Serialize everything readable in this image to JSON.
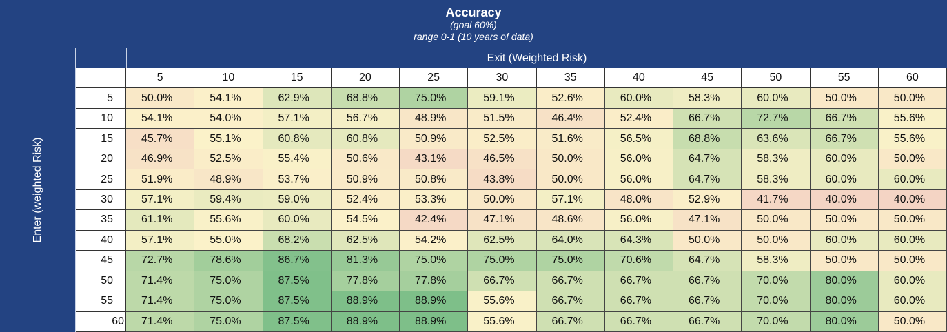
{
  "title": "Accuracy",
  "subtitle": "(goal 60%)",
  "range": "range 0-1 (10 years of data)",
  "x_axis_label": "Exit (Weighted Risk)",
  "y_axis_label": "Enter (weighted Risk)",
  "colors": {
    "header_bg": "#234382",
    "low": "#f4d4c4",
    "mid": "#fbf2c9",
    "high": "#7ebf89"
  },
  "chart_data": {
    "type": "heatmap",
    "title": "Accuracy",
    "xlabel": "Exit (Weighted Risk)",
    "ylabel": "Enter (weighted Risk)",
    "columns": [
      "5",
      "10",
      "15",
      "20",
      "25",
      "30",
      "35",
      "40",
      "45",
      "50",
      "55",
      "60"
    ],
    "rows": [
      "5",
      "10",
      "15",
      "20",
      "25",
      "30",
      "35",
      "40",
      "45",
      "50",
      "55",
      "60"
    ],
    "cells": [
      [
        "50.0%",
        "54.1%",
        "62.9%",
        "68.8%",
        "75.0%",
        "59.1%",
        "52.6%",
        "60.0%",
        "58.3%",
        "60.0%",
        "50.0%",
        "50.0%"
      ],
      [
        "54.1%",
        "54.0%",
        "57.1%",
        "56.7%",
        "48.9%",
        "51.5%",
        "46.4%",
        "52.4%",
        "66.7%",
        "72.7%",
        "66.7%",
        "55.6%"
      ],
      [
        "45.7%",
        "55.1%",
        "60.8%",
        "60.8%",
        "50.9%",
        "52.5%",
        "51.6%",
        "56.5%",
        "68.8%",
        "63.6%",
        "66.7%",
        "55.6%"
      ],
      [
        "46.9%",
        "52.5%",
        "55.4%",
        "50.6%",
        "43.1%",
        "46.5%",
        "50.0%",
        "56.0%",
        "64.7%",
        "58.3%",
        "60.0%",
        "50.0%"
      ],
      [
        "51.9%",
        "48.9%",
        "53.7%",
        "50.9%",
        "50.8%",
        "43.8%",
        "50.0%",
        "56.0%",
        "64.7%",
        "58.3%",
        "60.0%",
        "60.0%"
      ],
      [
        "57.1%",
        "59.4%",
        "59.0%",
        "52.4%",
        "53.3%",
        "50.0%",
        "57.1%",
        "48.0%",
        "52.9%",
        "41.7%",
        "40.0%",
        "40.0%"
      ],
      [
        "61.1%",
        "55.6%",
        "60.0%",
        "54.5%",
        "42.4%",
        "47.1%",
        "48.6%",
        "56.0%",
        "47.1%",
        "50.0%",
        "50.0%",
        "50.0%"
      ],
      [
        "57.1%",
        "55.0%",
        "68.2%",
        "62.5%",
        "54.2%",
        "62.5%",
        "64.0%",
        "64.3%",
        "50.0%",
        "50.0%",
        "60.0%",
        "60.0%"
      ],
      [
        "72.7%",
        "78.6%",
        "86.7%",
        "81.3%",
        "75.0%",
        "75.0%",
        "75.0%",
        "70.6%",
        "64.7%",
        "58.3%",
        "50.0%",
        "50.0%"
      ],
      [
        "71.4%",
        "75.0%",
        "87.5%",
        "77.8%",
        "77.8%",
        "66.7%",
        "66.7%",
        "66.7%",
        "66.7%",
        "70.0%",
        "80.0%",
        "60.0%"
      ],
      [
        "71.4%",
        "75.0%",
        "87.5%",
        "88.9%",
        "88.9%",
        "55.6%",
        "66.7%",
        "66.7%",
        "66.7%",
        "70.0%",
        "80.0%",
        "60.0%"
      ],
      [
        "71.4%",
        "75.0%",
        "87.5%",
        "88.9%",
        "88.9%",
        "55.6%",
        "66.7%",
        "66.7%",
        "66.7%",
        "70.0%",
        "80.0%",
        "50.0%"
      ]
    ]
  }
}
